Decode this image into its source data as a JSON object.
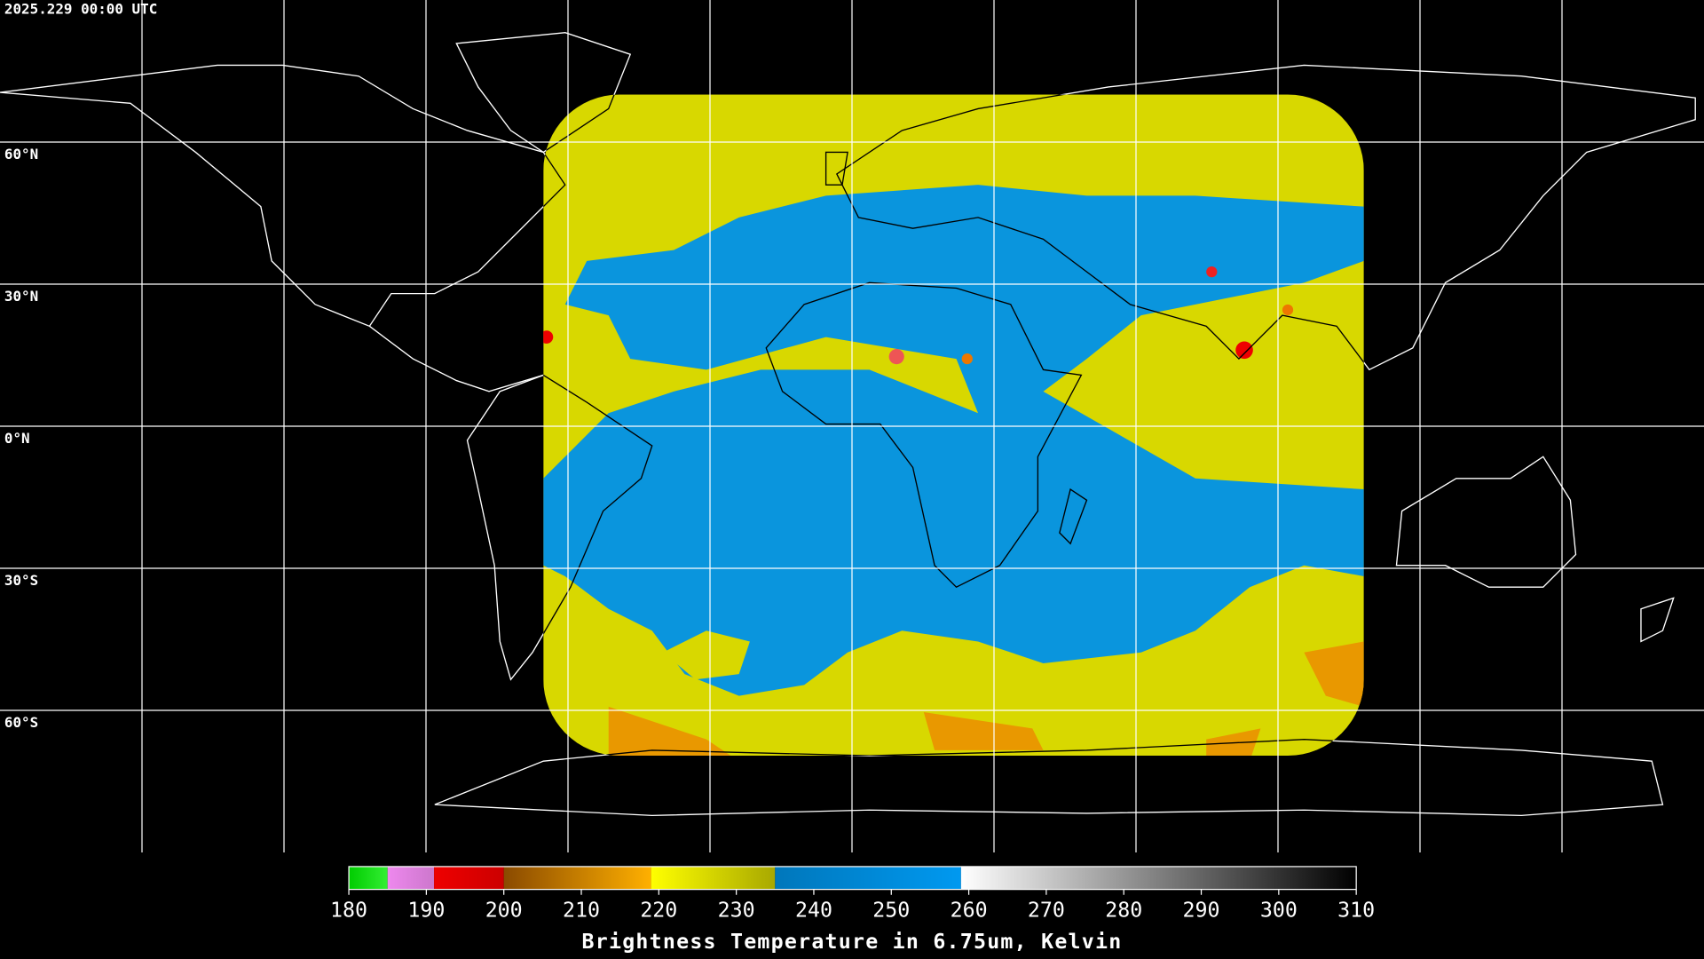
{
  "timestamp": "2025.229 00:00 UTC",
  "map": {
    "lon_range": [
      -180,
      180
    ],
    "lat_range": [
      90,
      -90
    ],
    "lon_grid": [
      -150,
      -120,
      -90,
      -60,
      -30,
      0,
      30,
      60,
      90,
      120,
      150
    ],
    "lat_grid": [
      {
        "value": 60,
        "label": "60°N"
      },
      {
        "value": 30,
        "label": "30°N"
      },
      {
        "value": 0,
        "label": "0°N"
      },
      {
        "value": -30,
        "label": "30°S"
      },
      {
        "value": -60,
        "label": "60°S"
      }
    ],
    "grid_color": "#ffffff"
  },
  "colorbar": {
    "title": "Brightness Temperature in 6.75um, Kelvin",
    "lim": [
      180,
      310
    ],
    "ticks": [
      180,
      190,
      200,
      210,
      220,
      230,
      240,
      250,
      260,
      270,
      280,
      290,
      300,
      310
    ],
    "segments": [
      {
        "from": 180,
        "to": 185,
        "colors": [
          "#00cc00",
          "#33ee33"
        ]
      },
      {
        "from": 185,
        "to": 191,
        "colors": [
          "#ee88ee",
          "#cc77cc"
        ]
      },
      {
        "from": 191,
        "to": 200,
        "colors": [
          "#ee0000",
          "#cc0000"
        ]
      },
      {
        "from": 200,
        "to": 219,
        "colors": [
          "#8a4a00",
          "#ffb000"
        ]
      },
      {
        "from": 219,
        "to": 235,
        "colors": [
          "#ffff00",
          "#a8a800"
        ]
      },
      {
        "from": 235,
        "to": 259,
        "colors": [
          "#0077bb",
          "#0099f0"
        ]
      },
      {
        "from": 259,
        "to": 310,
        "colors": [
          "#ffffff",
          "#000000"
        ]
      }
    ]
  }
}
